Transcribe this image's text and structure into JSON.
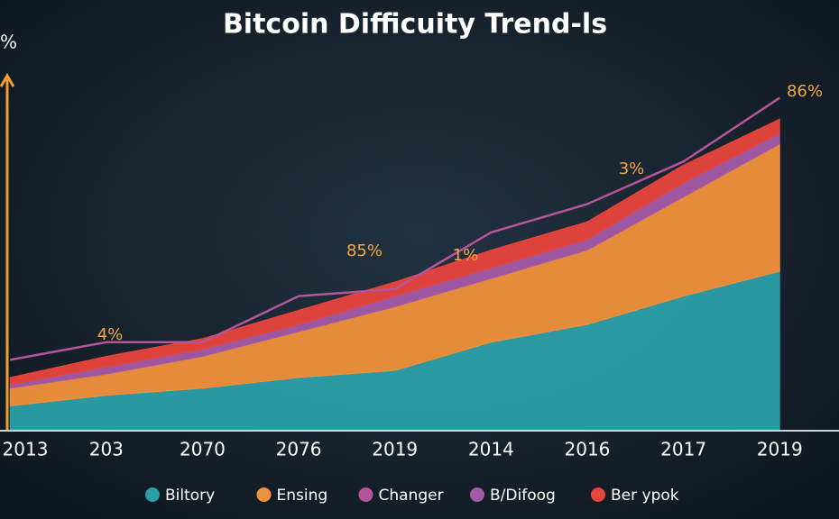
{
  "chart_data": {
    "type": "area",
    "title": "Bitcoin Difficuity Trend-ls",
    "y_label": "%",
    "categories": [
      "2013",
      "203",
      "2070",
      "2076",
      "2019",
      "2014",
      "2016",
      "2017",
      "2019"
    ],
    "series": [
      {
        "name": "Biltory",
        "color": "#2b9fa8",
        "values": [
          7,
          10,
          12,
          15,
          17,
          25,
          30,
          38,
          45
        ]
      },
      {
        "name": "Ensing",
        "color": "#f0913b",
        "values": [
          5,
          6,
          9,
          13,
          18,
          18,
          21,
          28,
          36
        ]
      },
      {
        "name": "Changer",
        "color": "#b4559a",
        "type": "line",
        "values": [
          20,
          25,
          25,
          38,
          40,
          56,
          64,
          76,
          94
        ]
      },
      {
        "name": "B/Difoog",
        "color": "#a45aa6",
        "values": [
          1,
          2,
          2,
          2,
          3,
          3,
          3,
          4,
          3
        ]
      },
      {
        "name": "Ber ypok",
        "color": "#e8443c",
        "values": [
          2,
          3,
          3,
          4,
          4,
          5,
          5,
          5,
          4
        ]
      }
    ],
    "annotations": [
      "4%",
      "85%",
      "1%",
      "3%",
      "86%"
    ],
    "ylim": [
      0,
      100
    ]
  }
}
